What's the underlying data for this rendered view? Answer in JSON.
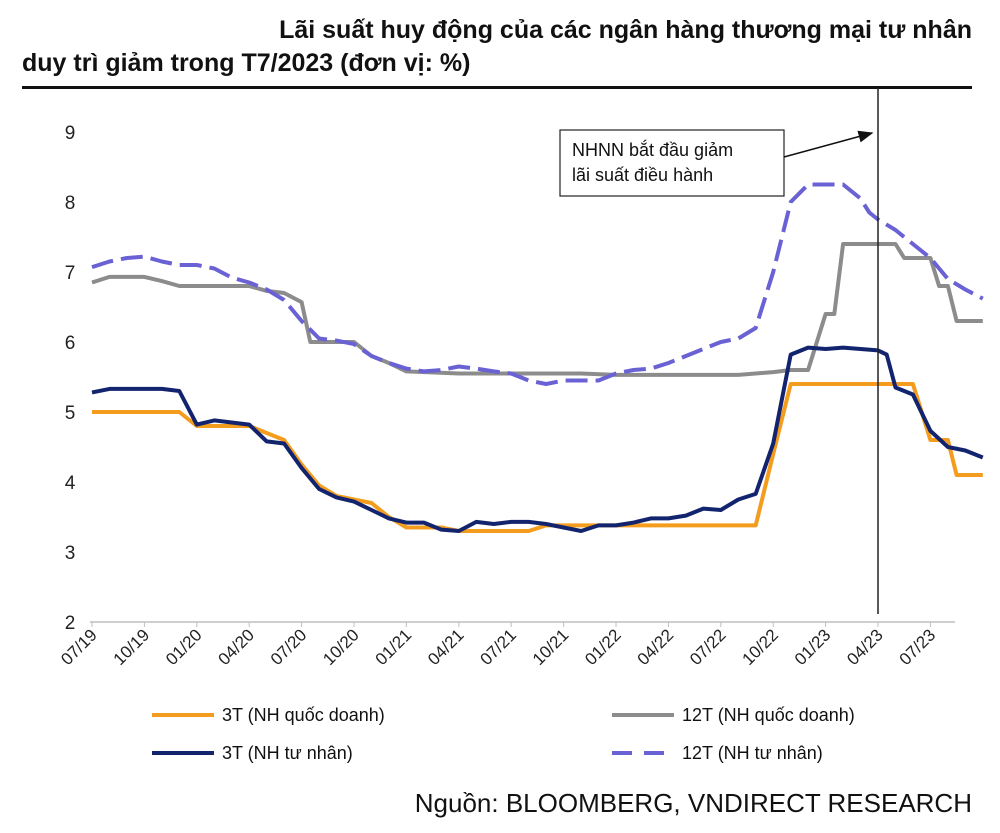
{
  "title_line1": "Lãi suất huy động của các ngân hàng thương mại tư nhân",
  "title_line2": "duy trì giảm trong T7/2023 (đơn vị: %)",
  "source": "Nguồn: BLOOMBERG, VNDIRECT RESEARCH",
  "chart_data": {
    "type": "line",
    "title": "Lãi suất huy động của các ngân hàng thương mại tư nhân duy trì giảm trong T7/2023 (đơn vị: %)",
    "xlabel": "",
    "ylabel": "",
    "ylim": [
      2,
      9
    ],
    "yticks": [
      "2",
      "3",
      "4",
      "5",
      "6",
      "7",
      "8",
      "9"
    ],
    "xticks": [
      "07/19",
      "10/19",
      "01/20",
      "04/20",
      "07/20",
      "10/20",
      "01/21",
      "04/21",
      "07/21",
      "10/21",
      "01/22",
      "04/22",
      "07/22",
      "10/22",
      "01/23",
      "04/23",
      "07/23"
    ],
    "x_unit": "month",
    "grid": false,
    "legend_position": "bottom",
    "annotation": {
      "line1": "NHNN bắt đầu giảm",
      "line2": "lãi suất điều hành",
      "marker_x": 45
    },
    "series": [
      {
        "name": "3T (NH quốc doanh)",
        "color": "#F39C1E",
        "dash": "solid",
        "points": [
          [
            0,
            5.0
          ],
          [
            4,
            5.0
          ],
          [
            5,
            5.0
          ],
          [
            6,
            4.8
          ],
          [
            8,
            4.8
          ],
          [
            9,
            4.8
          ],
          [
            10,
            4.7
          ],
          [
            11,
            4.6
          ],
          [
            12,
            4.25
          ],
          [
            13,
            3.95
          ],
          [
            14,
            3.8
          ],
          [
            15,
            3.75
          ],
          [
            16,
            3.7
          ],
          [
            17,
            3.5
          ],
          [
            18,
            3.35
          ],
          [
            20,
            3.35
          ],
          [
            21,
            3.3
          ],
          [
            23,
            3.3
          ],
          [
            24,
            3.3
          ],
          [
            25,
            3.3
          ],
          [
            26,
            3.38
          ],
          [
            37,
            3.38
          ],
          [
            38,
            3.38
          ],
          [
            39,
            4.4
          ],
          [
            40,
            5.4
          ],
          [
            46,
            5.4
          ],
          [
            46.5,
            5.4
          ],
          [
            47,
            5.4
          ],
          [
            48,
            4.6
          ],
          [
            49,
            4.6
          ],
          [
            49.5,
            4.1
          ],
          [
            51,
            4.1
          ]
        ]
      },
      {
        "name": "12T (NH quốc doanh)",
        "color": "#8C8C8C",
        "dash": "solid",
        "points": [
          [
            0,
            6.85
          ],
          [
            1,
            6.93
          ],
          [
            3,
            6.93
          ],
          [
            4,
            6.87
          ],
          [
            5,
            6.8
          ],
          [
            9,
            6.8
          ],
          [
            10,
            6.73
          ],
          [
            11,
            6.7
          ],
          [
            12,
            6.57
          ],
          [
            12.5,
            6.0
          ],
          [
            14,
            6.0
          ],
          [
            15,
            6.0
          ],
          [
            16,
            5.8
          ],
          [
            17,
            5.7
          ],
          [
            18,
            5.58
          ],
          [
            21,
            5.55
          ],
          [
            28,
            5.55
          ],
          [
            30,
            5.53
          ],
          [
            37,
            5.53
          ],
          [
            38,
            5.55
          ],
          [
            39,
            5.57
          ],
          [
            40,
            5.6
          ],
          [
            41,
            5.6
          ],
          [
            42,
            6.4
          ],
          [
            42.5,
            6.4
          ],
          [
            43,
            7.4
          ],
          [
            46,
            7.4
          ],
          [
            46.5,
            7.2
          ],
          [
            48,
            7.2
          ],
          [
            48.5,
            6.8
          ],
          [
            49,
            6.8
          ],
          [
            49.5,
            6.3
          ],
          [
            51,
            6.3
          ]
        ]
      },
      {
        "name": "3T (NH tư nhân)",
        "color": "#13246E",
        "dash": "solid",
        "points": [
          [
            0,
            5.28
          ],
          [
            1,
            5.33
          ],
          [
            4,
            5.33
          ],
          [
            5,
            5.3
          ],
          [
            6,
            4.82
          ],
          [
            7,
            4.88
          ],
          [
            8,
            4.85
          ],
          [
            9,
            4.82
          ],
          [
            10,
            4.58
          ],
          [
            11,
            4.55
          ],
          [
            12,
            4.2
          ],
          [
            13,
            3.9
          ],
          [
            14,
            3.78
          ],
          [
            15,
            3.72
          ],
          [
            16,
            3.6
          ],
          [
            17,
            3.48
          ],
          [
            18,
            3.42
          ],
          [
            19,
            3.42
          ],
          [
            20,
            3.32
          ],
          [
            21,
            3.3
          ],
          [
            22,
            3.43
          ],
          [
            23,
            3.4
          ],
          [
            24,
            3.43
          ],
          [
            25,
            3.43
          ],
          [
            26,
            3.4
          ],
          [
            27,
            3.35
          ],
          [
            28,
            3.3
          ],
          [
            29,
            3.38
          ],
          [
            30,
            3.38
          ],
          [
            31,
            3.42
          ],
          [
            32,
            3.48
          ],
          [
            33,
            3.48
          ],
          [
            34,
            3.52
          ],
          [
            35,
            3.62
          ],
          [
            36,
            3.6
          ],
          [
            37,
            3.75
          ],
          [
            38,
            3.83
          ],
          [
            39,
            4.55
          ],
          [
            40,
            5.82
          ],
          [
            41,
            5.92
          ],
          [
            42,
            5.9
          ],
          [
            43,
            5.92
          ],
          [
            44,
            5.9
          ],
          [
            45,
            5.88
          ],
          [
            45.5,
            5.82
          ],
          [
            46,
            5.35
          ],
          [
            46.5,
            5.3
          ],
          [
            47,
            5.25
          ],
          [
            48,
            4.73
          ],
          [
            49,
            4.5
          ],
          [
            50,
            4.45
          ],
          [
            51,
            4.35
          ]
        ]
      },
      {
        "name": "12T (NH tư nhân)",
        "color": "#6A62D4",
        "dash": "dashed",
        "points": [
          [
            0,
            7.07
          ],
          [
            1,
            7.15
          ],
          [
            2,
            7.2
          ],
          [
            3,
            7.22
          ],
          [
            4,
            7.15
          ],
          [
            5,
            7.1
          ],
          [
            6,
            7.1
          ],
          [
            7,
            7.05
          ],
          [
            8,
            6.92
          ],
          [
            9,
            6.85
          ],
          [
            10,
            6.75
          ],
          [
            11,
            6.6
          ],
          [
            12,
            6.3
          ],
          [
            13,
            6.05
          ],
          [
            14,
            6.02
          ],
          [
            15,
            5.97
          ],
          [
            16,
            5.8
          ],
          [
            17,
            5.7
          ],
          [
            18,
            5.62
          ],
          [
            19,
            5.58
          ],
          [
            20,
            5.6
          ],
          [
            21,
            5.65
          ],
          [
            22,
            5.62
          ],
          [
            23,
            5.58
          ],
          [
            24,
            5.55
          ],
          [
            25,
            5.45
          ],
          [
            26,
            5.4
          ],
          [
            27,
            5.45
          ],
          [
            28,
            5.45
          ],
          [
            29,
            5.45
          ],
          [
            30,
            5.55
          ],
          [
            31,
            5.6
          ],
          [
            32,
            5.62
          ],
          [
            33,
            5.7
          ],
          [
            34,
            5.8
          ],
          [
            35,
            5.9
          ],
          [
            36,
            6.0
          ],
          [
            37,
            6.05
          ],
          [
            38,
            6.2
          ],
          [
            39,
            7.0
          ],
          [
            40,
            8.0
          ],
          [
            41,
            8.25
          ],
          [
            42,
            8.25
          ],
          [
            43,
            8.25
          ],
          [
            44,
            8.05
          ],
          [
            44.5,
            7.85
          ],
          [
            45,
            7.75
          ],
          [
            46,
            7.6
          ],
          [
            47,
            7.4
          ],
          [
            48,
            7.2
          ],
          [
            49,
            6.9
          ],
          [
            50,
            6.75
          ],
          [
            51,
            6.62
          ]
        ]
      }
    ]
  }
}
